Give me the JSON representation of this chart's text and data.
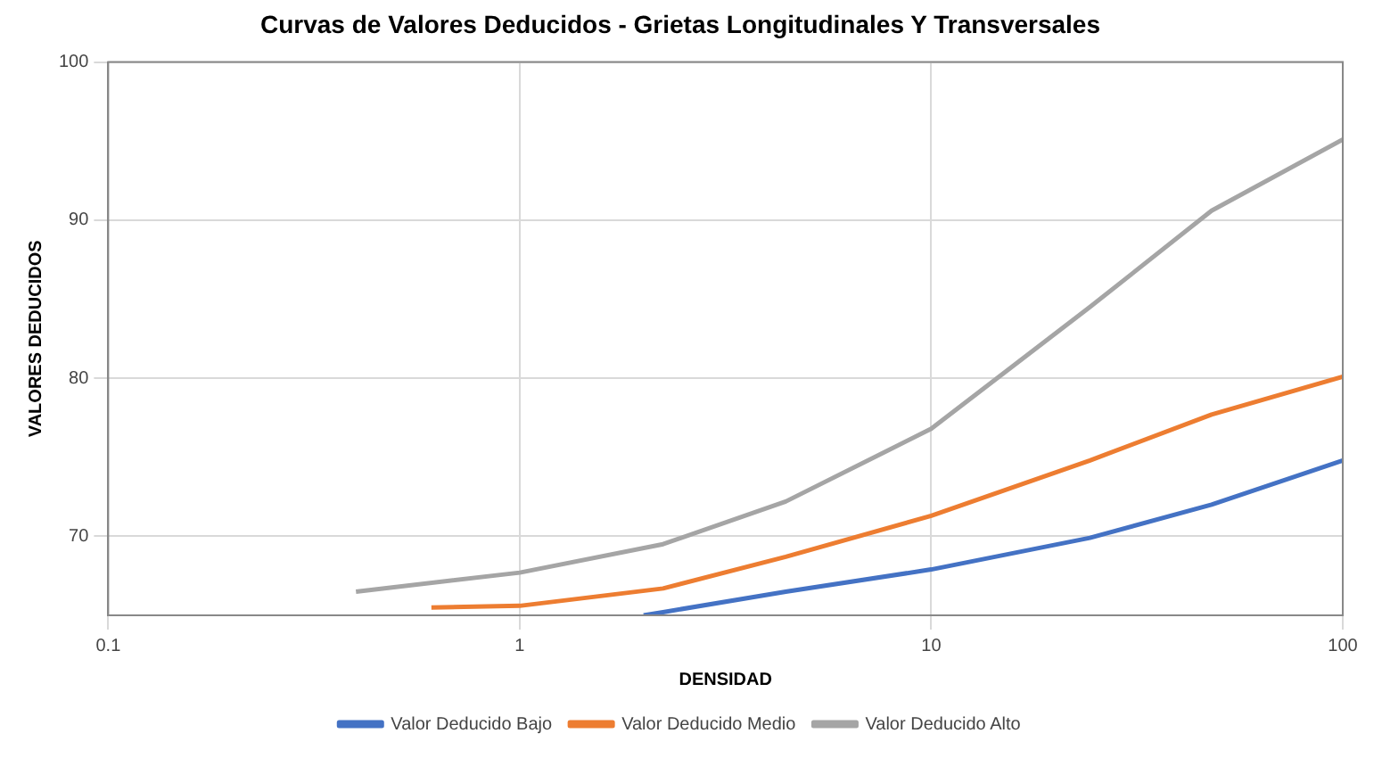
{
  "chart_data": {
    "type": "line",
    "title": "Curvas de Valores Deducidos - Grietas Longitudinales Y Transversales",
    "xlabel": "DENSIDAD",
    "ylabel": "VALORES DEDUCIDOS",
    "log": "x",
    "xlim": [
      0.1,
      100
    ],
    "xticks": [
      0.1,
      1,
      10,
      100
    ],
    "ylim": [
      65,
      100
    ],
    "yticks": [
      70,
      80,
      90,
      100
    ],
    "grid": true,
    "legend": "bottom",
    "marker": "none",
    "line_style": "solid",
    "series": [
      {
        "name": "Valor Deducido Bajo",
        "color": "#4472c4",
        "x": [
          2.0,
          2.23,
          4.43,
          10,
          24.3,
          48,
          100
        ],
        "values": [
          65.0,
          65.2,
          66.5,
          67.9,
          69.9,
          72.0,
          74.8
        ]
      },
      {
        "name": "Valor Deducido Medio",
        "color": "#ed7d31",
        "x": [
          0.61,
          1,
          2.23,
          4.43,
          10,
          24.3,
          48,
          100
        ],
        "values": [
          65.5,
          65.6,
          66.7,
          68.7,
          71.3,
          74.8,
          77.7,
          80.1
        ]
      },
      {
        "name": "Valor Deducido Alto",
        "color": "#a5a5a5",
        "x": [
          0.4,
          1,
          2.23,
          4.43,
          10,
          24.3,
          48,
          100
        ],
        "values": [
          66.5,
          67.7,
          69.5,
          72.2,
          76.8,
          84.5,
          90.6,
          95.1
        ]
      }
    ]
  }
}
